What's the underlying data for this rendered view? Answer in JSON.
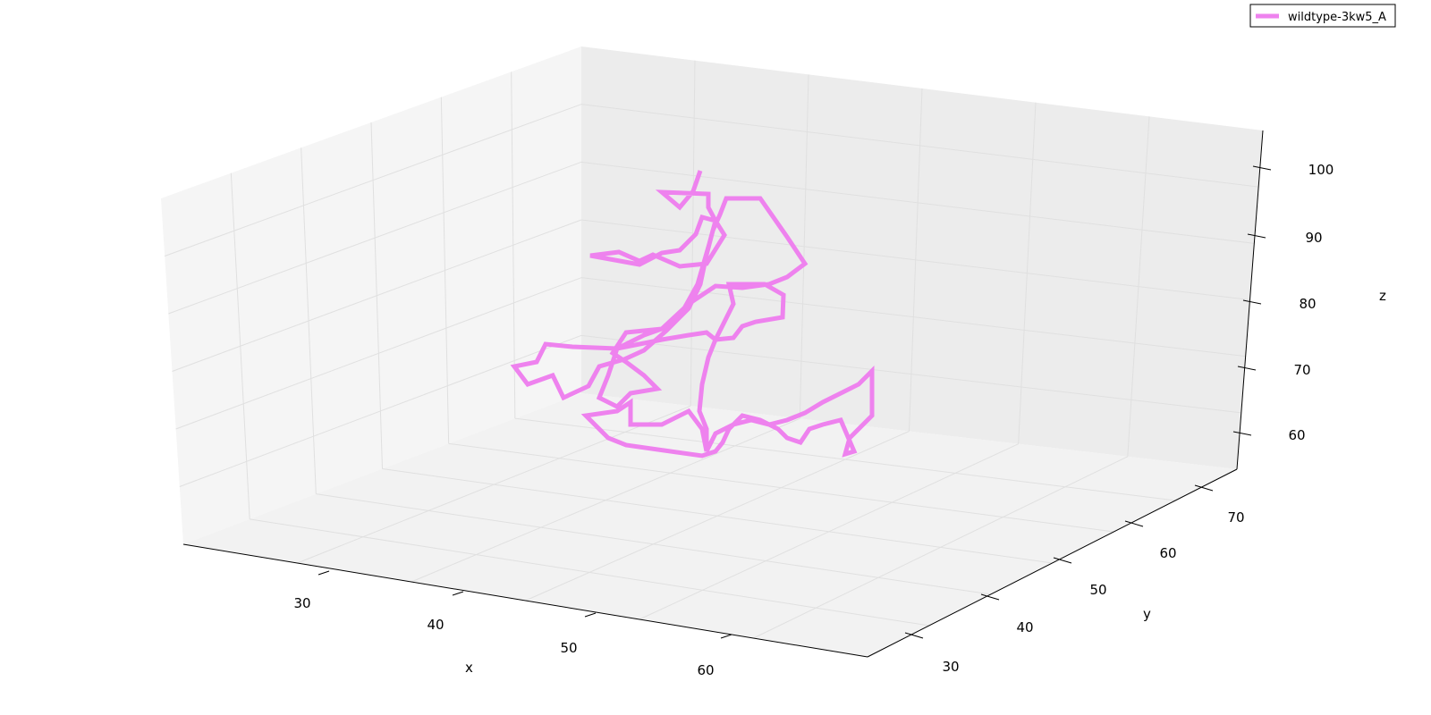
{
  "chart_data": {
    "type": "line",
    "projection": "3d",
    "xlabel": "x",
    "ylabel": "y",
    "zlabel": "z",
    "x_ticks": [
      30,
      40,
      50,
      60
    ],
    "y_ticks": [
      30,
      40,
      50,
      60,
      70
    ],
    "z_ticks": [
      60,
      70,
      80,
      90,
      100
    ],
    "legend": {
      "position": "top-right",
      "entries": [
        "wildtype-3kw5_A"
      ]
    },
    "grid": true,
    "series": [
      {
        "name": "wildtype-3kw5_A",
        "color": "#ee82ee",
        "note": "3D C-alpha backbone trace; points below are the traced path as read from the projected figure (approximate)",
        "path_projected": [
          [
            783,
            191
          ],
          [
            775,
            214
          ],
          [
            760,
            232
          ],
          [
            740,
            215
          ],
          [
            792,
            217
          ],
          [
            792,
            232
          ],
          [
            800,
            247
          ],
          [
            785,
            243
          ],
          [
            778,
            262
          ],
          [
            760,
            280
          ],
          [
            740,
            283
          ],
          [
            715,
            296
          ],
          [
            660,
            286
          ],
          [
            692,
            282
          ],
          [
            715,
            292
          ],
          [
            730,
            285
          ],
          [
            760,
            298
          ],
          [
            790,
            295
          ],
          [
            810,
            263
          ],
          [
            800,
            247
          ],
          [
            793,
            273
          ],
          [
            780,
            318
          ],
          [
            765,
            345
          ],
          [
            740,
            368
          ],
          [
            700,
            372
          ],
          [
            685,
            395
          ],
          [
            700,
            405
          ],
          [
            720,
            420
          ],
          [
            735,
            435
          ],
          [
            705,
            440
          ],
          [
            690,
            455
          ],
          [
            670,
            445
          ],
          [
            680,
            420
          ],
          [
            690,
            390
          ],
          [
            720,
            375
          ],
          [
            740,
            368
          ],
          [
            770,
            340
          ],
          [
            800,
            320
          ],
          [
            830,
            322
          ],
          [
            860,
            318
          ],
          [
            880,
            310
          ],
          [
            900,
            295
          ],
          [
            880,
            265
          ],
          [
            850,
            222
          ],
          [
            812,
            222
          ],
          [
            805,
            240
          ],
          [
            797,
            258
          ],
          [
            790,
            285
          ],
          [
            783,
            318
          ],
          [
            770,
            345
          ],
          [
            745,
            370
          ],
          [
            720,
            392
          ],
          [
            698,
            402
          ],
          [
            670,
            410
          ],
          [
            658,
            432
          ],
          [
            630,
            445
          ],
          [
            618,
            420
          ],
          [
            590,
            430
          ],
          [
            575,
            410
          ],
          [
            600,
            405
          ],
          [
            610,
            385
          ],
          [
            640,
            388
          ],
          [
            690,
            390
          ],
          [
            715,
            385
          ],
          [
            740,
            380
          ],
          [
            770,
            375
          ],
          [
            790,
            372
          ],
          [
            800,
            380
          ],
          [
            820,
            378
          ],
          [
            830,
            365
          ],
          [
            845,
            360
          ],
          [
            875,
            355
          ],
          [
            876,
            330
          ],
          [
            855,
            318
          ],
          [
            815,
            318
          ],
          [
            820,
            340
          ],
          [
            810,
            360
          ],
          [
            800,
            380
          ],
          [
            792,
            400
          ],
          [
            785,
            430
          ],
          [
            782,
            460
          ],
          [
            790,
            480
          ],
          [
            790,
            505
          ],
          [
            800,
            485
          ],
          [
            820,
            475
          ],
          [
            840,
            470
          ],
          [
            860,
            475
          ],
          [
            880,
            470
          ],
          [
            900,
            462
          ],
          [
            920,
            450
          ],
          [
            940,
            440
          ],
          [
            960,
            430
          ],
          [
            975,
            415
          ],
          [
            975,
            440
          ],
          [
            975,
            465
          ],
          [
            965,
            475
          ],
          [
            950,
            490
          ],
          [
            945,
            508
          ],
          [
            955,
            505
          ],
          [
            940,
            470
          ],
          [
            920,
            475
          ],
          [
            905,
            480
          ],
          [
            895,
            495
          ],
          [
            880,
            490
          ],
          [
            870,
            480
          ],
          [
            850,
            470
          ],
          [
            830,
            465
          ],
          [
            815,
            480
          ],
          [
            808,
            495
          ],
          [
            800,
            505
          ],
          [
            785,
            510
          ],
          [
            700,
            498
          ],
          [
            680,
            490
          ],
          [
            655,
            465
          ],
          [
            690,
            460
          ],
          [
            705,
            450
          ],
          [
            705,
            475
          ],
          [
            740,
            475
          ],
          [
            770,
            460
          ],
          [
            785,
            480
          ],
          [
            790,
            505
          ]
        ]
      }
    ]
  }
}
